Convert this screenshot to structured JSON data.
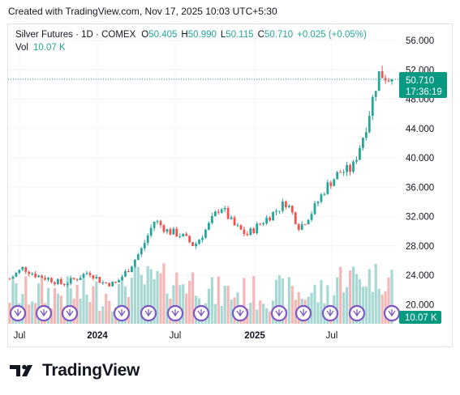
{
  "header": {
    "created_text": "Created with TradingView.com, Nov 17, 2025 10:03 UTC+5:30"
  },
  "legend": {
    "symbol": "Silver Futures · 1D · COMEX",
    "o_label": "O",
    "o_value": "50.405",
    "h_label": "H",
    "h_value": "50.990",
    "l_label": "L",
    "l_value": "50.115",
    "c_label": "C",
    "c_value": "50.710",
    "change": "+0.025 (+0.05%)",
    "vol_label": "Vol",
    "vol_value": "10.07 K"
  },
  "price_label": {
    "price": "50.710",
    "countdown": "17:36:19"
  },
  "vol_label_tag": "10.07 K",
  "footer": {
    "brand": "TradingView"
  },
  "colors": {
    "up": "#26a69a",
    "down": "#ef5350",
    "vol_up": "#a8d8d3",
    "vol_down": "#f4b7b5",
    "last_price": "#089981",
    "event_icon": "#7e57c2"
  },
  "chart_data": {
    "type": "line",
    "title": "Silver Futures · 1D · COMEX",
    "xlabel": "",
    "ylabel": "",
    "x_ticks": [
      "Jul",
      "2024",
      "Jul",
      "2025",
      "Jul"
    ],
    "y_ticks": [
      "56.000",
      "52.000",
      "48.000",
      "44.000",
      "40.000",
      "36.000",
      "32.000",
      "28.000",
      "24.000",
      "20.000"
    ],
    "ylim": [
      18.5,
      57.5
    ],
    "grid": true,
    "series": [
      {
        "x": [
          "2023-06",
          "2023-07",
          "2023-08",
          "2023-09",
          "2023-10",
          "2023-11",
          "2023-12",
          "2024-01",
          "2024-02",
          "2024-03",
          "2024-04",
          "2024-05",
          "2024-06",
          "2024-07",
          "2024-08",
          "2024-09",
          "2024-10",
          "2024-11",
          "2024-12",
          "2025-01",
          "2025-02",
          "2025-03",
          "2025-04",
          "2025-05",
          "2025-06",
          "2025-07",
          "2025-08",
          "2025-09",
          "2025-10",
          "2025-11"
        ],
        "values": [
          23.5,
          25.0,
          24.0,
          23.5,
          22.8,
          23.5,
          24.5,
          23.0,
          22.8,
          24.8,
          27.5,
          31.5,
          30.0,
          29.5,
          28.0,
          30.5,
          33.5,
          30.8,
          29.5,
          31.0,
          32.5,
          34.0,
          30.5,
          32.8,
          36.0,
          38.0,
          38.5,
          44.0,
          51.5,
          50.71
        ]
      }
    ],
    "last_close": 50.71
  }
}
